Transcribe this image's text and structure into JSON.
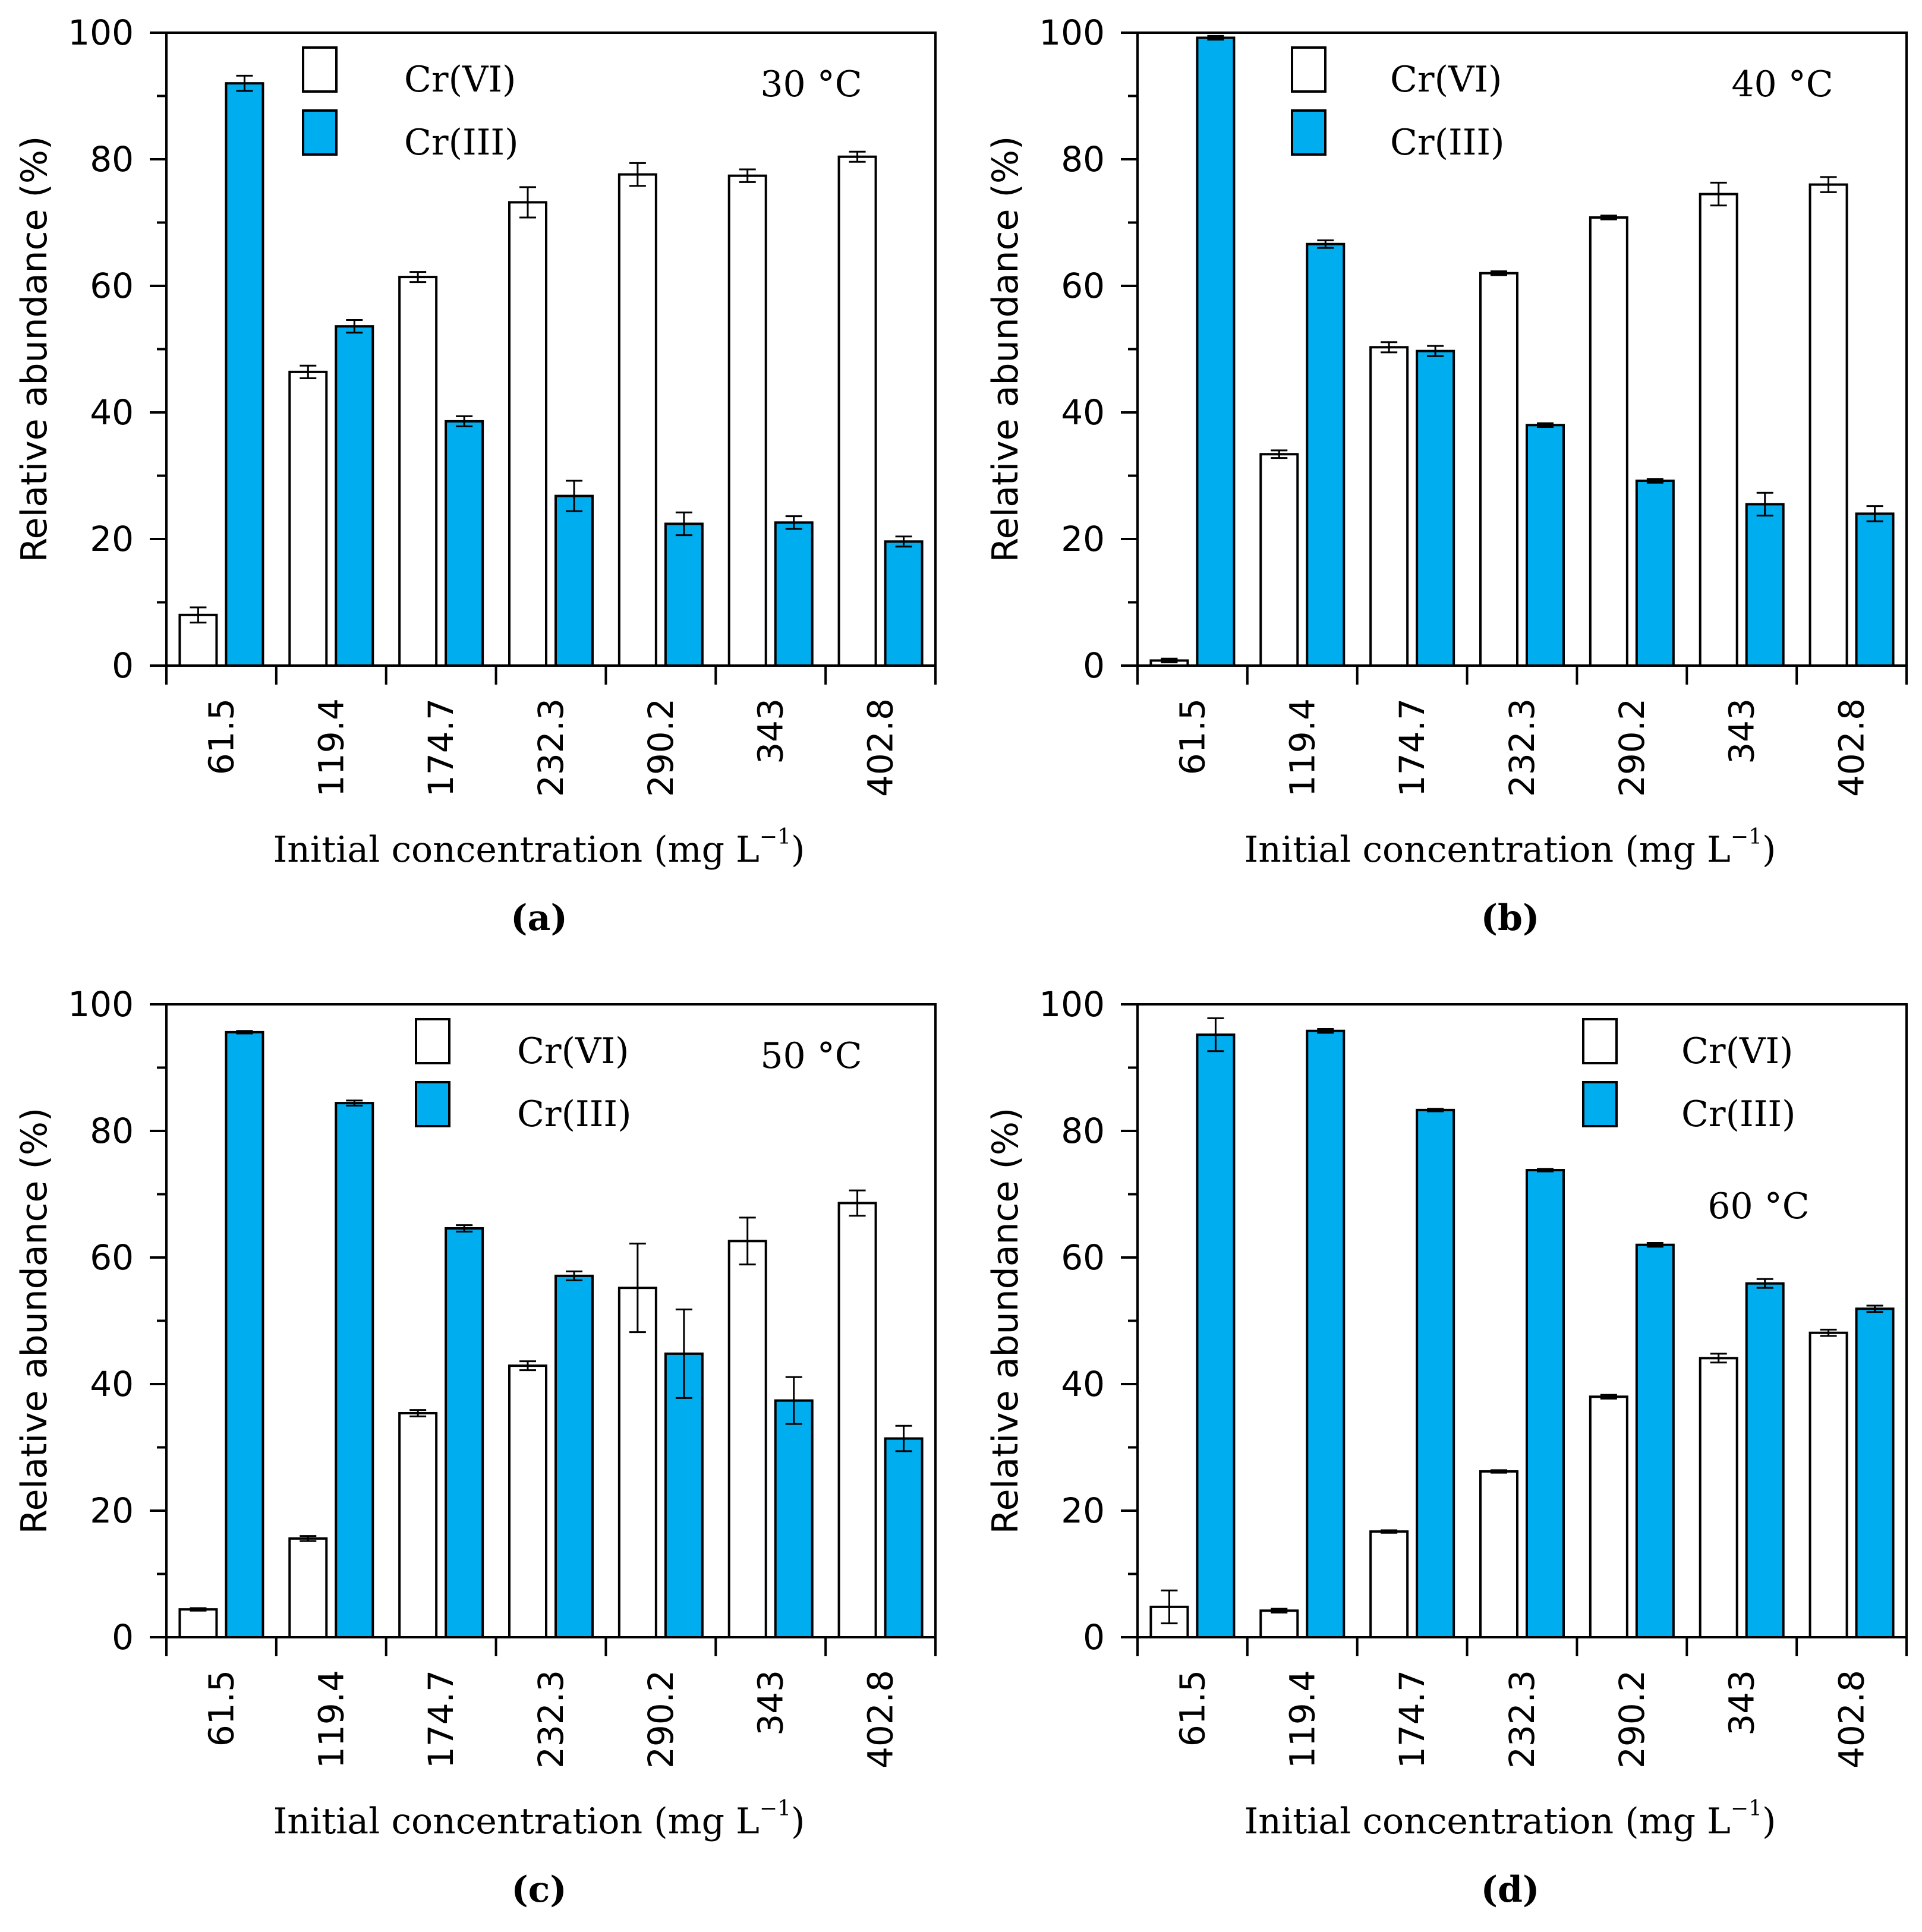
{
  "figure": {
    "colors": {
      "cr6": "#ffffff",
      "cr3": "#00aeef",
      "line": "#000000"
    },
    "y_axis_label": "Relative abundance (%)",
    "x_axis_label_main": "Initial concentration (mg L",
    "x_axis_label_sup": "−1",
    "x_axis_label_end": ")"
  },
  "chart_data": [
    {
      "type": "bar",
      "panel_label": "(a)",
      "temperature": "30 °C",
      "categories": [
        "61.5",
        "119.4",
        "174.7",
        "232.3",
        "290.2",
        "343",
        "402.8"
      ],
      "ylim": [
        0,
        100
      ],
      "yticks": [
        "0",
        "20",
        "40",
        "60",
        "80",
        "100"
      ],
      "legend": [
        "Cr(VI)",
        "Cr(III)"
      ],
      "series": [
        {
          "name": "Cr(VI)",
          "values": [
            8,
            46.4,
            61.4,
            73.2,
            77.6,
            77.4,
            80.4
          ],
          "errors": [
            1.2,
            1,
            0.8,
            2.4,
            1.8,
            1,
            0.8
          ]
        },
        {
          "name": "Cr(III)",
          "values": [
            92,
            53.6,
            38.6,
            26.8,
            22.4,
            22.6,
            19.6
          ],
          "errors": [
            1.2,
            1,
            0.8,
            2.4,
            1.8,
            1,
            0.8
          ]
        }
      ]
    },
    {
      "type": "bar",
      "panel_label": "(b)",
      "temperature": "40 °C",
      "categories": [
        "61.5",
        "119.4",
        "174.7",
        "232.3",
        "290.2",
        "343",
        "402.8"
      ],
      "ylim": [
        0,
        100
      ],
      "yticks": [
        "0",
        "20",
        "40",
        "60",
        "80",
        "100"
      ],
      "legend": [
        "Cr(VI)",
        "Cr(III)"
      ],
      "series": [
        {
          "name": "Cr(VI)",
          "values": [
            0.8,
            33.4,
            50.3,
            62,
            70.8,
            74.5,
            76
          ],
          "errors": [
            0.3,
            0.6,
            0.8,
            0.3,
            0.3,
            1.8,
            1.2
          ]
        },
        {
          "name": "Cr(III)",
          "values": [
            99.2,
            66.6,
            49.7,
            38,
            29.2,
            25.5,
            24
          ],
          "errors": [
            0.3,
            0.6,
            0.8,
            0.3,
            0.3,
            1.8,
            1.2
          ]
        }
      ]
    },
    {
      "type": "bar",
      "panel_label": "(c)",
      "temperature": "50 °C",
      "categories": [
        "61.5",
        "119.4",
        "174.7",
        "232.3",
        "290.2",
        "343",
        "402.8"
      ],
      "ylim": [
        0,
        100
      ],
      "yticks": [
        "0",
        "20",
        "40",
        "60",
        "80",
        "100"
      ],
      "legend": [
        "Cr(VI)",
        "Cr(III)"
      ],
      "series": [
        {
          "name": "Cr(VI)",
          "values": [
            4.4,
            15.6,
            35.4,
            42.9,
            55.2,
            62.6,
            68.6
          ],
          "errors": [
            0.2,
            0.4,
            0.5,
            0.7,
            7,
            3.7,
            2
          ]
        },
        {
          "name": "Cr(III)",
          "values": [
            95.6,
            84.4,
            64.6,
            57.1,
            44.8,
            37.4,
            31.4
          ],
          "errors": [
            0.2,
            0.4,
            0.5,
            0.7,
            7,
            3.7,
            2
          ]
        }
      ]
    },
    {
      "type": "bar",
      "panel_label": "(d)",
      "temperature": "60 °C",
      "categories": [
        "61.5",
        "119.4",
        "174.7",
        "232.3",
        "290.2",
        "343",
        "402.8"
      ],
      "ylim": [
        0,
        100
      ],
      "yticks": [
        "0",
        "20",
        "40",
        "60",
        "80",
        "100"
      ],
      "legend": [
        "Cr(VI)",
        "Cr(III)"
      ],
      "series": [
        {
          "name": "Cr(VI)",
          "values": [
            4.8,
            4.2,
            16.7,
            26.2,
            38,
            44.1,
            48.1
          ],
          "errors": [
            2.6,
            0.3,
            0.2,
            0.2,
            0.3,
            0.7,
            0.5
          ]
        },
        {
          "name": "Cr(III)",
          "values": [
            95.2,
            95.8,
            83.3,
            73.8,
            62,
            55.9,
            51.9
          ],
          "errors": [
            2.6,
            0.3,
            0.2,
            0.2,
            0.3,
            0.7,
            0.5
          ]
        }
      ]
    }
  ]
}
